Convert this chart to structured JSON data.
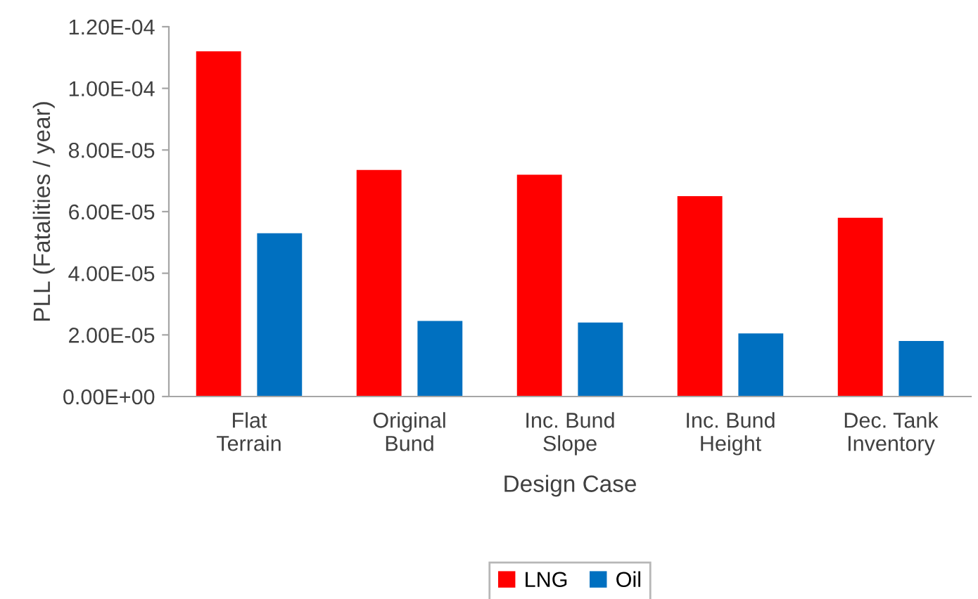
{
  "chart_data": {
    "type": "bar",
    "xlabel": "Design Case",
    "ylabel": "PLL (Fatalities / year)",
    "categories": [
      "Flat\nTerrain",
      "Original\nBund",
      "Inc. Bund\nSlope",
      "Inc. Bund\nHeight",
      "Dec. Tank\nInventory"
    ],
    "series": [
      {
        "name": "LNG",
        "color": "#ff0000",
        "values": [
          0.000112,
          7.35e-05,
          7.2e-05,
          6.5e-05,
          5.8e-05
        ]
      },
      {
        "name": "Oil",
        "color": "#0070c0",
        "values": [
          5.3e-05,
          2.45e-05,
          2.4e-05,
          2.05e-05,
          1.8e-05
        ]
      }
    ],
    "ylim": [
      0,
      0.00012
    ],
    "yticks": [
      {
        "value": 0,
        "label": "0.00E+00"
      },
      {
        "value": 2e-05,
        "label": "2.00E-05"
      },
      {
        "value": 4e-05,
        "label": "4.00E-05"
      },
      {
        "value": 6e-05,
        "label": "6.00E-05"
      },
      {
        "value": 8e-05,
        "label": "8.00E-05"
      },
      {
        "value": 0.0001,
        "label": "1.00E-04"
      },
      {
        "value": 0.00012,
        "label": "1.20E-04"
      }
    ],
    "grid": false,
    "legend": "bottom"
  }
}
